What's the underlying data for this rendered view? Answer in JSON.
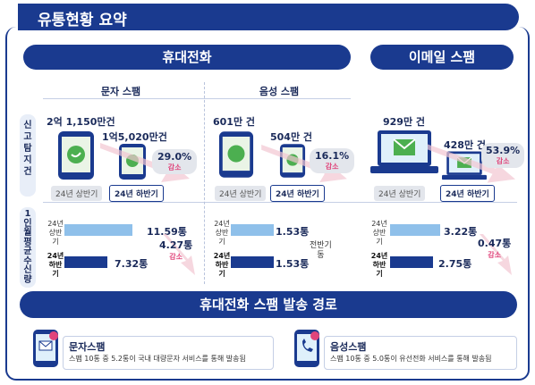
{
  "title": "유통현황 요약",
  "mobile": {
    "header": "휴대전화",
    "sms": {
      "title": "문자 스팸",
      "count_h1": "2억 1,150만건",
      "count_h2": "1억5,020만건",
      "pct": "29.0%",
      "dec": "감소",
      "tag_h1": "24년 상반기",
      "tag_h2": "24년 하반기",
      "bar_h1_label": [
        "24년",
        "상반기"
      ],
      "bar_h2_label": [
        "24년",
        "하반기"
      ],
      "bar_h1_value": "11.59통",
      "bar_h2_value": "7.32통",
      "bar_h1_fraction": 0.86,
      "bar_h2_fraction": 0.55,
      "per_diff": "4.27통",
      "per_dec": "감소"
    },
    "voice": {
      "title": "음성 스팸",
      "count_h1": "601만 건",
      "count_h2": "504만 건",
      "pct": "16.1%",
      "dec": "감소",
      "tag_h1": "24년 상반기",
      "tag_h2": "24년 하반기",
      "bar_h1_label": [
        "24년",
        "상반기"
      ],
      "bar_h2_label": [
        "24년",
        "하반기"
      ],
      "bar_h1_value": "1.53통",
      "bar_h2_value": "1.53통",
      "bar_h1_fraction": 0.55,
      "bar_h2_fraction": 0.55,
      "note": [
        "전반기",
        "동"
      ]
    }
  },
  "email": {
    "header": "이메일 스팸",
    "count_h1": "929만 건",
    "count_h2": "428만 건",
    "pct": "53.9%",
    "dec": "감소",
    "tag_h1": "24년 상반기",
    "tag_h2": "24년 하반기",
    "bar_h1_label": [
      "24년",
      "상반기"
    ],
    "bar_h2_label": [
      "24년",
      "하반기"
    ],
    "bar_h1_value": "3.22통",
    "bar_h2_value": "2.75통",
    "bar_h1_fraction": 0.64,
    "bar_h2_fraction": 0.55,
    "per_diff": "0.47통",
    "per_dec": "감소"
  },
  "row_labels": {
    "report": [
      "신",
      "고",
      "탐",
      "지",
      "건"
    ],
    "per_person": [
      "1",
      "인",
      "월",
      "평",
      "균",
      "수",
      "신",
      "량"
    ]
  },
  "route": {
    "header": "휴대전화 스팸 발송 경로",
    "sms_title": "문자스팸",
    "sms_desc": "스팸 10통 중 5.2통이 국내 대량문자 서비스를 통해 발송됨",
    "voice_title": "음성스팸",
    "voice_desc": "스팸 10통 중 5.0통이 유선전화 서비스를 통해 발송됨"
  },
  "colors": {
    "navy": "#1a3a8f",
    "light_bar": "#8fc0ea",
    "pink": "#e0457b",
    "green": "#4caf50"
  },
  "icons": [
    "phone-icon",
    "chat-bubble-icon",
    "laptop-icon",
    "envelope-icon",
    "down-arrow-icon"
  ]
}
